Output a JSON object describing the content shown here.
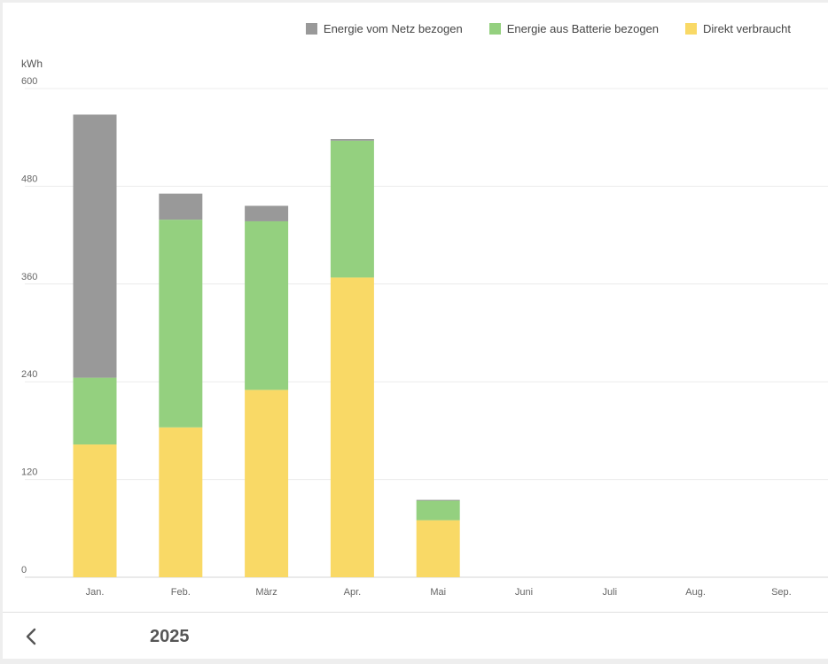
{
  "legend": [
    {
      "label": "Energie vom Netz bezogen",
      "color": "#999999"
    },
    {
      "label": "Energie aus Batterie bezogen",
      "color": "#94d07f"
    },
    {
      "label": "Direkt verbraucht",
      "color": "#f9d966"
    }
  ],
  "unit_label": "kWh",
  "footer": {
    "year": "2025",
    "back_icon": "chevron-left-icon"
  },
  "chart_data": {
    "type": "bar",
    "stacked": true,
    "categories": [
      "Jan.",
      "Feb.",
      "März",
      "Apr.",
      "Mai",
      "Juni",
      "Juli",
      "Aug.",
      "Sep."
    ],
    "series": [
      {
        "name": "Direkt verbraucht",
        "color": "#f9d966",
        "values": [
          163,
          184,
          230,
          368,
          70,
          null,
          null,
          null,
          null
        ]
      },
      {
        "name": "Energie aus Batterie bezogen",
        "color": "#94d07f",
        "values": [
          82,
          255,
          207,
          168,
          24,
          null,
          null,
          null,
          null
        ]
      },
      {
        "name": "Energie vom Netz bezogen",
        "color": "#999999",
        "values": [
          323,
          32,
          19,
          2,
          1,
          null,
          null,
          null,
          null
        ]
      }
    ],
    "ylabel": "kWh",
    "ylim": [
      0,
      600
    ],
    "yticks": [
      0,
      120,
      240,
      360,
      480,
      600
    ],
    "grid": true,
    "legend_position": "top-right"
  }
}
